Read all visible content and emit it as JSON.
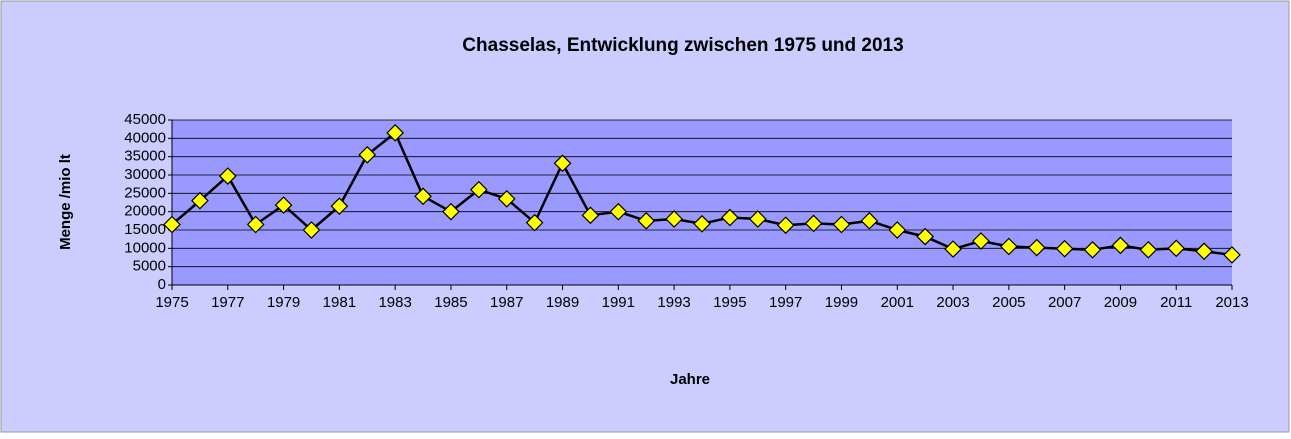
{
  "chart_data": {
    "type": "line",
    "title": "Chasselas, Entwicklung zwischen 1975 und 2013",
    "x_label": "Jahre",
    "y_label": "Menge /mio  lt",
    "x": [
      1975,
      1976,
      1977,
      1978,
      1979,
      1980,
      1981,
      1982,
      1983,
      1984,
      1985,
      1986,
      1987,
      1988,
      1989,
      1990,
      1991,
      1992,
      1993,
      1994,
      1995,
      1996,
      1997,
      1998,
      1999,
      2000,
      2001,
      2002,
      2003,
      2004,
      2005,
      2006,
      2007,
      2008,
      2009,
      2010,
      2011,
      2012,
      2013
    ],
    "series": [
      {
        "name": "Chasselas",
        "color": "#ffff00",
        "values": [
          16500,
          23000,
          29700,
          16500,
          21800,
          15000,
          21500,
          35500,
          41500,
          24200,
          20000,
          26000,
          23500,
          17000,
          33200,
          19000,
          20000,
          17500,
          18000,
          16700,
          18400,
          18000,
          16300,
          16800,
          16500,
          17500,
          15000,
          13200,
          9800,
          12000,
          10500,
          10200,
          9900,
          9600,
          10800,
          9600,
          10000,
          9200,
          8200
        ]
      }
    ],
    "xlim": [
      1975,
      2013
    ],
    "xticks": [
      1975,
      1977,
      1979,
      1981,
      1983,
      1985,
      1987,
      1989,
      1991,
      1993,
      1995,
      1997,
      1999,
      2001,
      2003,
      2005,
      2007,
      2009,
      2011,
      2013
    ],
    "ylim": [
      0,
      45000
    ],
    "yticks": [
      0,
      5000,
      10000,
      15000,
      20000,
      25000,
      30000,
      35000,
      40000,
      45000
    ],
    "grid": true
  }
}
